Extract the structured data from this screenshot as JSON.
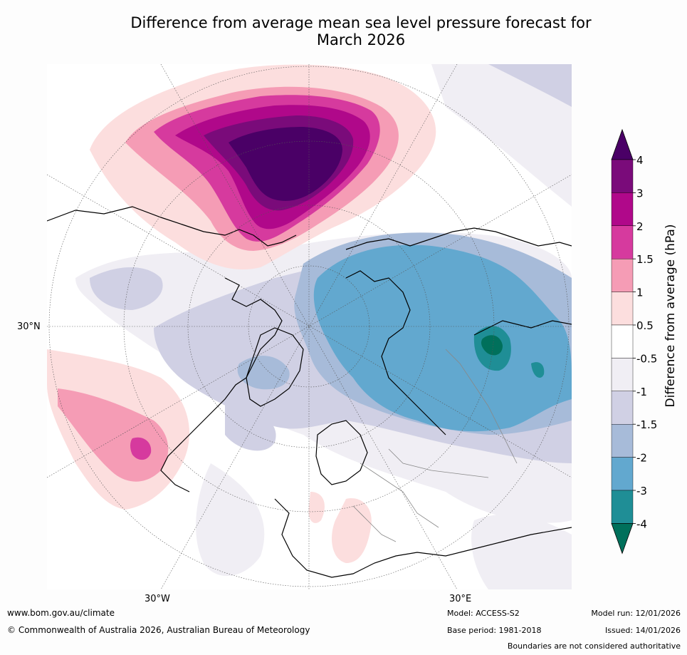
{
  "title_line1": "Difference from average mean sea level pressure forecast for",
  "title_line2": "March 2026",
  "map": {
    "labels": {
      "lat_30n": "30°N",
      "lon_30w": "30°W",
      "lon_30e": "30°E"
    }
  },
  "colorbar": {
    "label": "Difference from average (hPa)",
    "ticks": [
      "4",
      "3",
      "2",
      "1.5",
      "1",
      "0.5",
      "-0.5",
      "-1",
      "-1.5",
      "-2",
      "-3",
      "-4"
    ],
    "colors": [
      "#4a0066",
      "#7a0b7a",
      "#b0088a",
      "#d63a9e",
      "#f59cb5",
      "#fcdede",
      "#ffffff",
      "#f0eef4",
      "#d0d0e4",
      "#a7bbd9",
      "#62a8cf",
      "#1f8e96",
      "#00705b"
    ]
  },
  "footer": {
    "url": "www.bom.gov.au/climate",
    "copyright": "© Commonwealth of Australia 2026, Australian Bureau of Meteorology",
    "model": "Model: ACCESS-S2",
    "base_period": "Base period: 1981-2018",
    "model_run": "Model run: 12/01/2026",
    "issued": "Issued: 14/01/2026",
    "disclaimer": "Boundaries are not considered authoritative"
  }
}
